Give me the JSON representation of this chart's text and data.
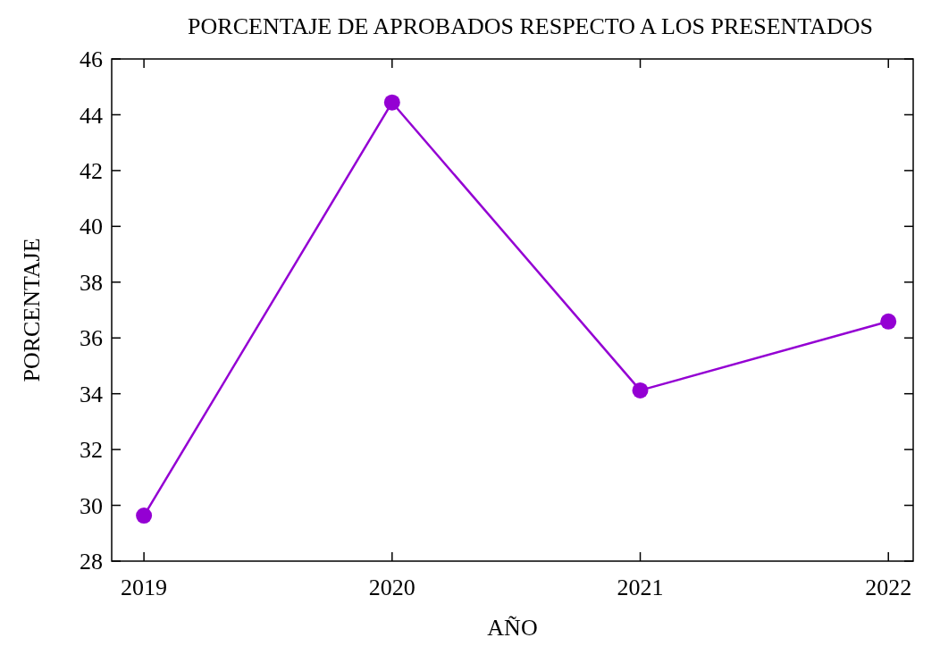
{
  "chart_data": {
    "type": "line",
    "title": "PORCENTAJE DE APROBADOS RESPECTO A LOS PRESENTADOS",
    "xlabel": "AÑO",
    "ylabel": "PORCENTAJE",
    "x": [
      2019,
      2020,
      2021,
      2022
    ],
    "series": [
      {
        "color": "#9400d3",
        "values": [
          29.63,
          44.44,
          34.12,
          36.59
        ]
      }
    ],
    "xlim": [
      2018.87,
      2022.1
    ],
    "xticks": [
      2019,
      2020,
      2021,
      2022
    ],
    "ylim": [
      28,
      46
    ],
    "yticks": [
      28,
      30,
      32,
      34,
      36,
      38,
      40,
      42,
      44,
      46
    ],
    "marker": "circle",
    "line_style": "solid"
  }
}
